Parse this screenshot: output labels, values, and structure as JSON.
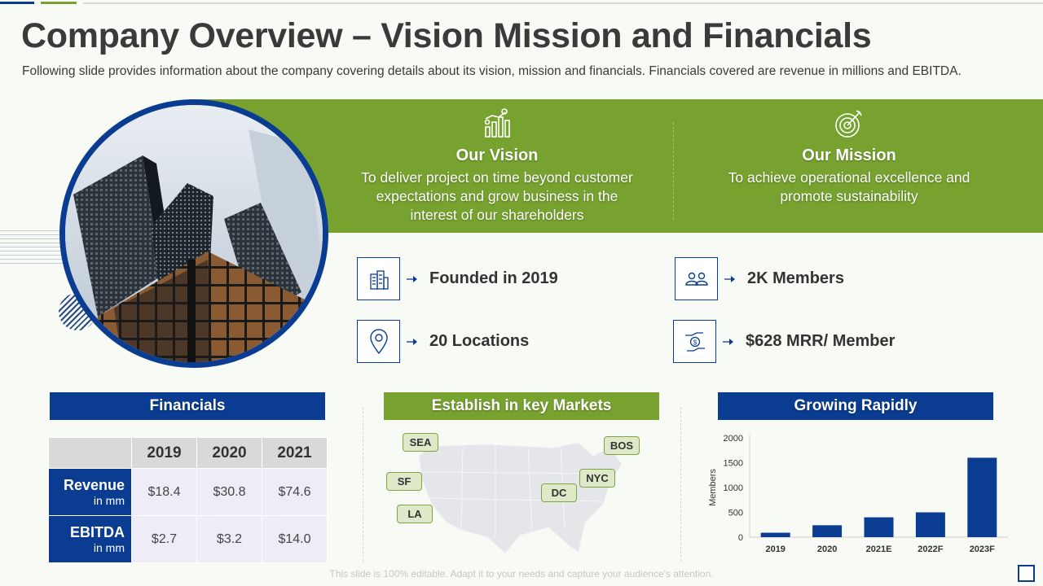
{
  "header": {
    "title": "Company Overview – Vision Mission and Financials",
    "subtitle": "Following slide provides information about the company covering details about its vision, mission and financials. Financials covered are revenue in millions and EBITDA."
  },
  "vision": {
    "title": "Our Vision",
    "lines": [
      "To deliver project on time beyond customer",
      "expectations and grow business in the",
      "interest of our shareholders"
    ],
    "icon": "growth-chart-icon"
  },
  "mission": {
    "title": "Our Mission",
    "lines": [
      "To achieve operational excellence and",
      "promote sustainability"
    ],
    "icon": "target-icon"
  },
  "stats": [
    {
      "text": "Founded in 2019",
      "icon": "building-icon"
    },
    {
      "text": "2K Members",
      "icon": "people-icon"
    },
    {
      "text": "20 Locations",
      "icon": "location-pin-icon"
    },
    {
      "text": "$628 MRR/ Member",
      "icon": "money-hand-icon"
    }
  ],
  "financials": {
    "heading": "Financials",
    "years": [
      "2019",
      "2020",
      "2021"
    ],
    "rows": [
      {
        "label": "Revenue",
        "unit": "in mm",
        "values": [
          "$18.4",
          "$30.8",
          "$74.6"
        ]
      },
      {
        "label": "EBITDA",
        "unit": "in mm",
        "values": [
          "$2.7",
          "$3.2",
          "$14.0"
        ]
      }
    ]
  },
  "markets": {
    "heading": "Establish in key Markets",
    "cities": [
      "SEA",
      "BOS",
      "SF",
      "NYC",
      "DC",
      "LA"
    ]
  },
  "growth": {
    "heading": "Growing Rapidly"
  },
  "chart_data": {
    "type": "bar",
    "title": "",
    "xlabel": "",
    "ylabel": "Members",
    "categories": [
      "2019",
      "2020",
      "2021E",
      "2022F",
      "2023F"
    ],
    "values": [
      90,
      240,
      400,
      500,
      1600
    ],
    "ylim": [
      0,
      2000
    ],
    "yticks": [
      0,
      500,
      1000,
      1500,
      2000
    ],
    "grid": false,
    "color": "#0a3d91"
  },
  "footer": {
    "text": "This slide is 100% editable. Adapt it to your needs and capture your audience's attention."
  },
  "colors": {
    "brand_blue": "#0a3d91",
    "brand_green": "#77a22f"
  }
}
